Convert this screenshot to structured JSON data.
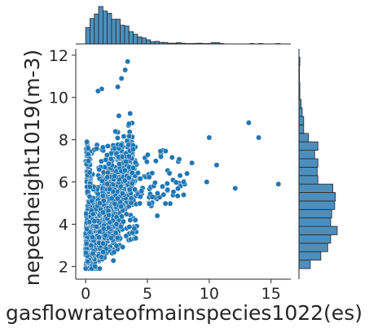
{
  "chart_data": {
    "type": "scatter",
    "title": "",
    "xlabel": "gasflowrateofmainspecies1022(es)",
    "ylabel": "nepedheight1019(m-3)",
    "xlim": [
      -0.8,
      16.6
    ],
    "ylim": [
      1.4,
      12.3
    ],
    "xticks": [
      0,
      5,
      10,
      15
    ],
    "yticks": [
      2,
      4,
      6,
      8,
      10,
      12
    ],
    "xtick_labels": [
      "0",
      "5",
      "10",
      "15"
    ],
    "ytick_labels": [
      "2",
      "4",
      "6",
      "8",
      "10",
      "12"
    ],
    "grid": false,
    "legend": "none",
    "marker_color": "#1f77b4",
    "marker_edge": "#ffffff",
    "hist_fill": "#4c8fbd",
    "hist_edge": "#262626",
    "notable_points": [
      {
        "x": 13.2,
        "y": 8.8
      },
      {
        "x": 14.0,
        "y": 8.1
      },
      {
        "x": 15.6,
        "y": 5.9
      },
      {
        "x": 12.1,
        "y": 5.7
      },
      {
        "x": 10.6,
        "y": 6.8
      },
      {
        "x": 10.0,
        "y": 8.1
      },
      {
        "x": 9.8,
        "y": 6.0
      },
      {
        "x": 8.6,
        "y": 6.9
      },
      {
        "x": 8.2,
        "y": 6.4
      },
      {
        "x": 6.3,
        "y": 5.4
      },
      {
        "x": 5.8,
        "y": 4.4
      },
      {
        "x": 3.4,
        "y": 11.7
      },
      {
        "x": 3.2,
        "y": 11.3
      },
      {
        "x": 2.9,
        "y": 10.9
      },
      {
        "x": 2.6,
        "y": 10.5
      },
      {
        "x": 1.3,
        "y": 10.4
      },
      {
        "x": 1.0,
        "y": 10.3
      },
      {
        "x": 0.1,
        "y": 7.9
      },
      {
        "x": 0.2,
        "y": 7.6
      },
      {
        "x": 0.0,
        "y": 1.9
      }
    ],
    "x_marginal": {
      "bin_edges": [
        0.0,
        0.35,
        0.7,
        1.05,
        1.4,
        1.75,
        2.1,
        2.45,
        2.8,
        3.15,
        3.5,
        3.85,
        4.2,
        4.55,
        4.9,
        5.25,
        5.6,
        5.95,
        6.3,
        6.65,
        7.0,
        7.35,
        7.7,
        8.05,
        8.4,
        8.75,
        9.1,
        9.45,
        9.8,
        10.15,
        10.5,
        10.85,
        11.2,
        11.55,
        11.9,
        12.25,
        12.6,
        12.95,
        13.3,
        13.65,
        14.0,
        14.35,
        14.7,
        15.05,
        15.4,
        15.75
      ],
      "counts": [
        220,
        340,
        400,
        500,
        440,
        410,
        330,
        330,
        250,
        240,
        165,
        130,
        95,
        80,
        55,
        30,
        35,
        22,
        20,
        10,
        10,
        18,
        10,
        6,
        6,
        8,
        10,
        6,
        6,
        18,
        18,
        6,
        0,
        0,
        0,
        0,
        0,
        0,
        6,
        0,
        6,
        0,
        0,
        0,
        6
      ]
    },
    "y_marginal": {
      "bin_edges": [
        1.9,
        2.3,
        2.7,
        3.1,
        3.5,
        3.9,
        4.3,
        4.7,
        5.1,
        5.5,
        5.9,
        6.3,
        6.7,
        7.1,
        7.5,
        7.9,
        8.3,
        8.7,
        9.1,
        9.5,
        9.9,
        10.3,
        10.7,
        11.1,
        11.5,
        11.9
      ],
      "counts": [
        310,
        600,
        790,
        870,
        1050,
        870,
        900,
        980,
        1000,
        930,
        520,
        500,
        520,
        430,
        520,
        260,
        130,
        130,
        90,
        60,
        25,
        25,
        15,
        15,
        25
      ]
    }
  }
}
